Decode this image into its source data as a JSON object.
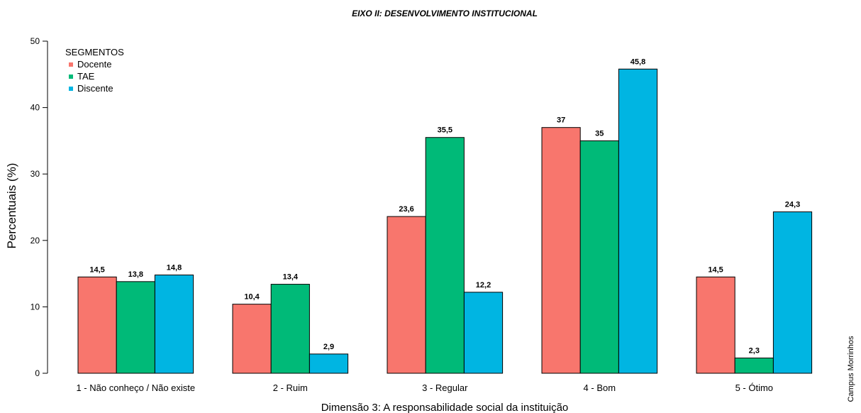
{
  "chart_data": {
    "type": "bar",
    "title": "EIXO II: DESENVOLVIMENTO INSTITUCIONAL",
    "xlabel": "Dimensão 3: A responsabilidade social da instituição",
    "ylabel": "Percentuais (%)",
    "side_label": "Campus Morrinhos",
    "ylim": [
      0,
      50
    ],
    "yticks": [
      0,
      10,
      20,
      30,
      40,
      50
    ],
    "categories": [
      "1 - Não conheço / Não existe",
      "2 - Ruim",
      "3 - Regular",
      "4 - Bom",
      "5 - Ótimo"
    ],
    "legend": {
      "title": "SEGMENTOS",
      "position": "top-left"
    },
    "grid": false,
    "series": [
      {
        "name": "Docente",
        "color": "#F8766D",
        "values": [
          14.5,
          10.4,
          23.6,
          37,
          14.5
        ],
        "labels": [
          "14,5",
          "10,4",
          "23,6",
          "37",
          "14,5"
        ]
      },
      {
        "name": "TAE",
        "color": "#00BA78",
        "values": [
          13.8,
          13.4,
          35.5,
          35,
          2.3
        ],
        "labels": [
          "13,8",
          "13,4",
          "35,5",
          "35",
          "2,3"
        ]
      },
      {
        "name": "Discente",
        "color": "#00B5E2",
        "values": [
          14.8,
          2.9,
          12.2,
          45.8,
          24.3
        ],
        "labels": [
          "14,8",
          "2,9",
          "12,2",
          "45,8",
          "24,3"
        ]
      }
    ]
  }
}
